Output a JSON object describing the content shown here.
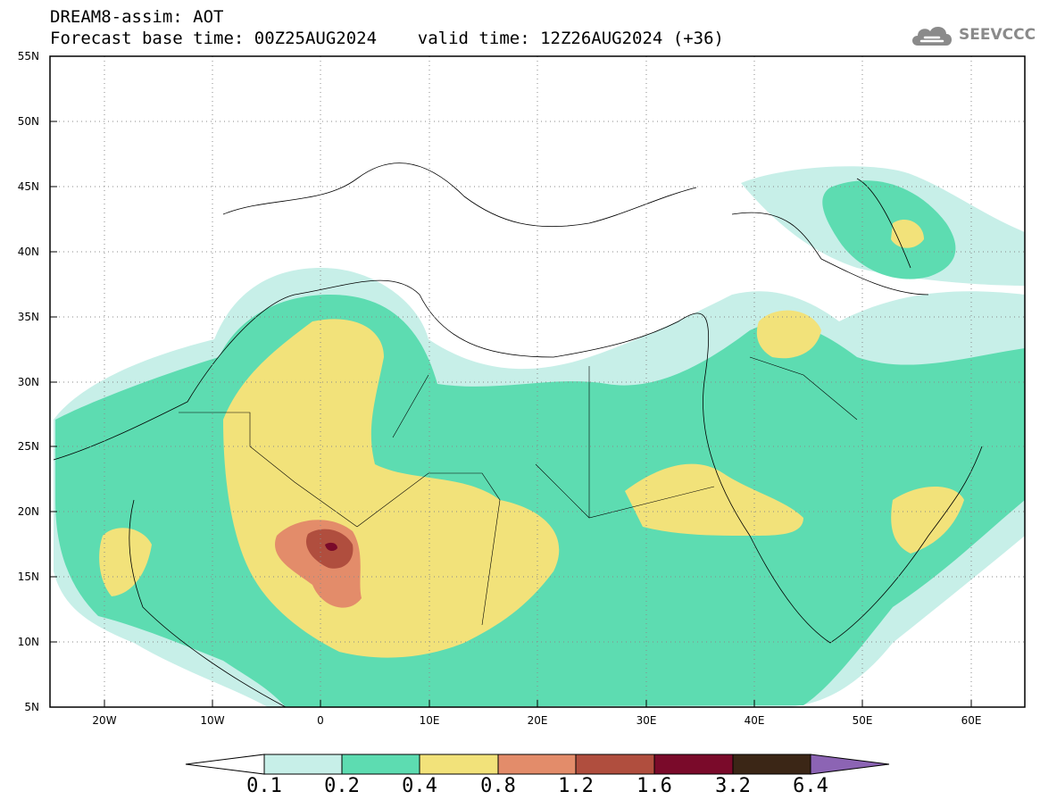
{
  "title": {
    "line1": "DREAM8-assim: AOT",
    "line2": "Forecast base time: 00Z25AUG2024    valid time: 12Z26AUG2024 (+36)"
  },
  "logo": {
    "text": "SEEVCCC",
    "icon": "cloud-icon"
  },
  "map": {
    "projection": "lat-lon",
    "lon_range": [
      -25,
      65
    ],
    "lat_range": [
      5,
      55
    ],
    "y_ticks": [
      "5N",
      "10N",
      "15N",
      "20N",
      "25N",
      "30N",
      "35N",
      "40N",
      "45N",
      "50N",
      "55N"
    ],
    "x_ticks": [
      "20W",
      "10W",
      "0",
      "10E",
      "20E",
      "30E",
      "40E",
      "50E",
      "60E"
    ],
    "grid": "dotted"
  },
  "colorbar": {
    "labels": [
      "0.1",
      "0.2",
      "0.4",
      "0.8",
      "1.2",
      "1.6",
      "3.2",
      "6.4"
    ],
    "colors": [
      "#ffffff",
      "#c7efe8",
      "#5ddcb1",
      "#f2e27a",
      "#e38c6a",
      "#b04e3e",
      "#7a0a2a",
      "#3b2616",
      "#8c64b4"
    ]
  }
}
